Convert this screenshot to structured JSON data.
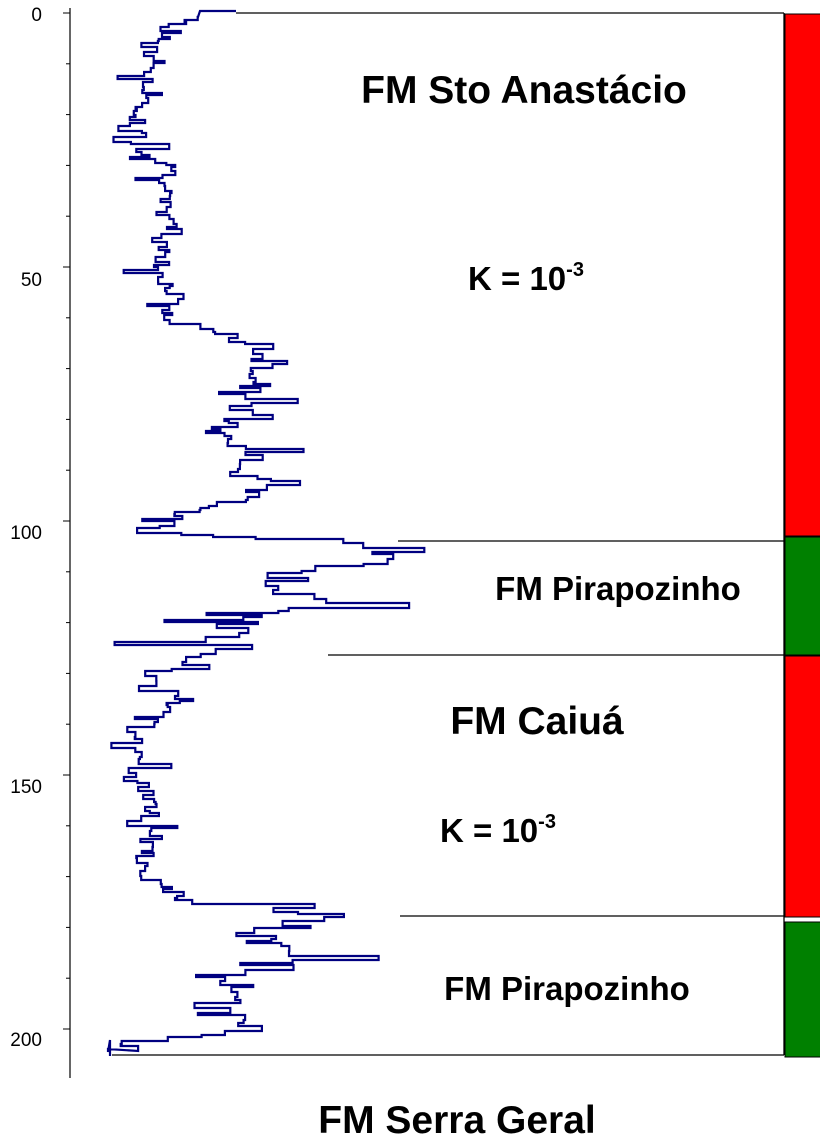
{
  "depth_axis": {
    "ticks": [
      "0",
      "50",
      "100",
      "150",
      "200"
    ],
    "min": 0,
    "max": 200
  },
  "formations": [
    {
      "name": "FM Sto Anastácio",
      "top": 0,
      "bottom": 103.5,
      "color": "#ff0000",
      "k_base": "K = 10",
      "k_exp": "-3"
    },
    {
      "name": "FM Pirapozinho",
      "top": 103.5,
      "bottom": 126,
      "color": "#008000"
    },
    {
      "name": "FM Caiuá",
      "top": 126,
      "bottom": 177,
      "color": "#ff0000",
      "k_base": "K = 10",
      "k_exp": "-3"
    },
    {
      "name": "FM Pirapozinho",
      "top": 177.5,
      "bottom": 204.5,
      "color": "#008000"
    }
  ],
  "bottom_label": "FM Serra Geral",
  "colors": {
    "log_line": "#000080",
    "red_zone": "#ff0000",
    "green_zone": "#008000"
  }
}
